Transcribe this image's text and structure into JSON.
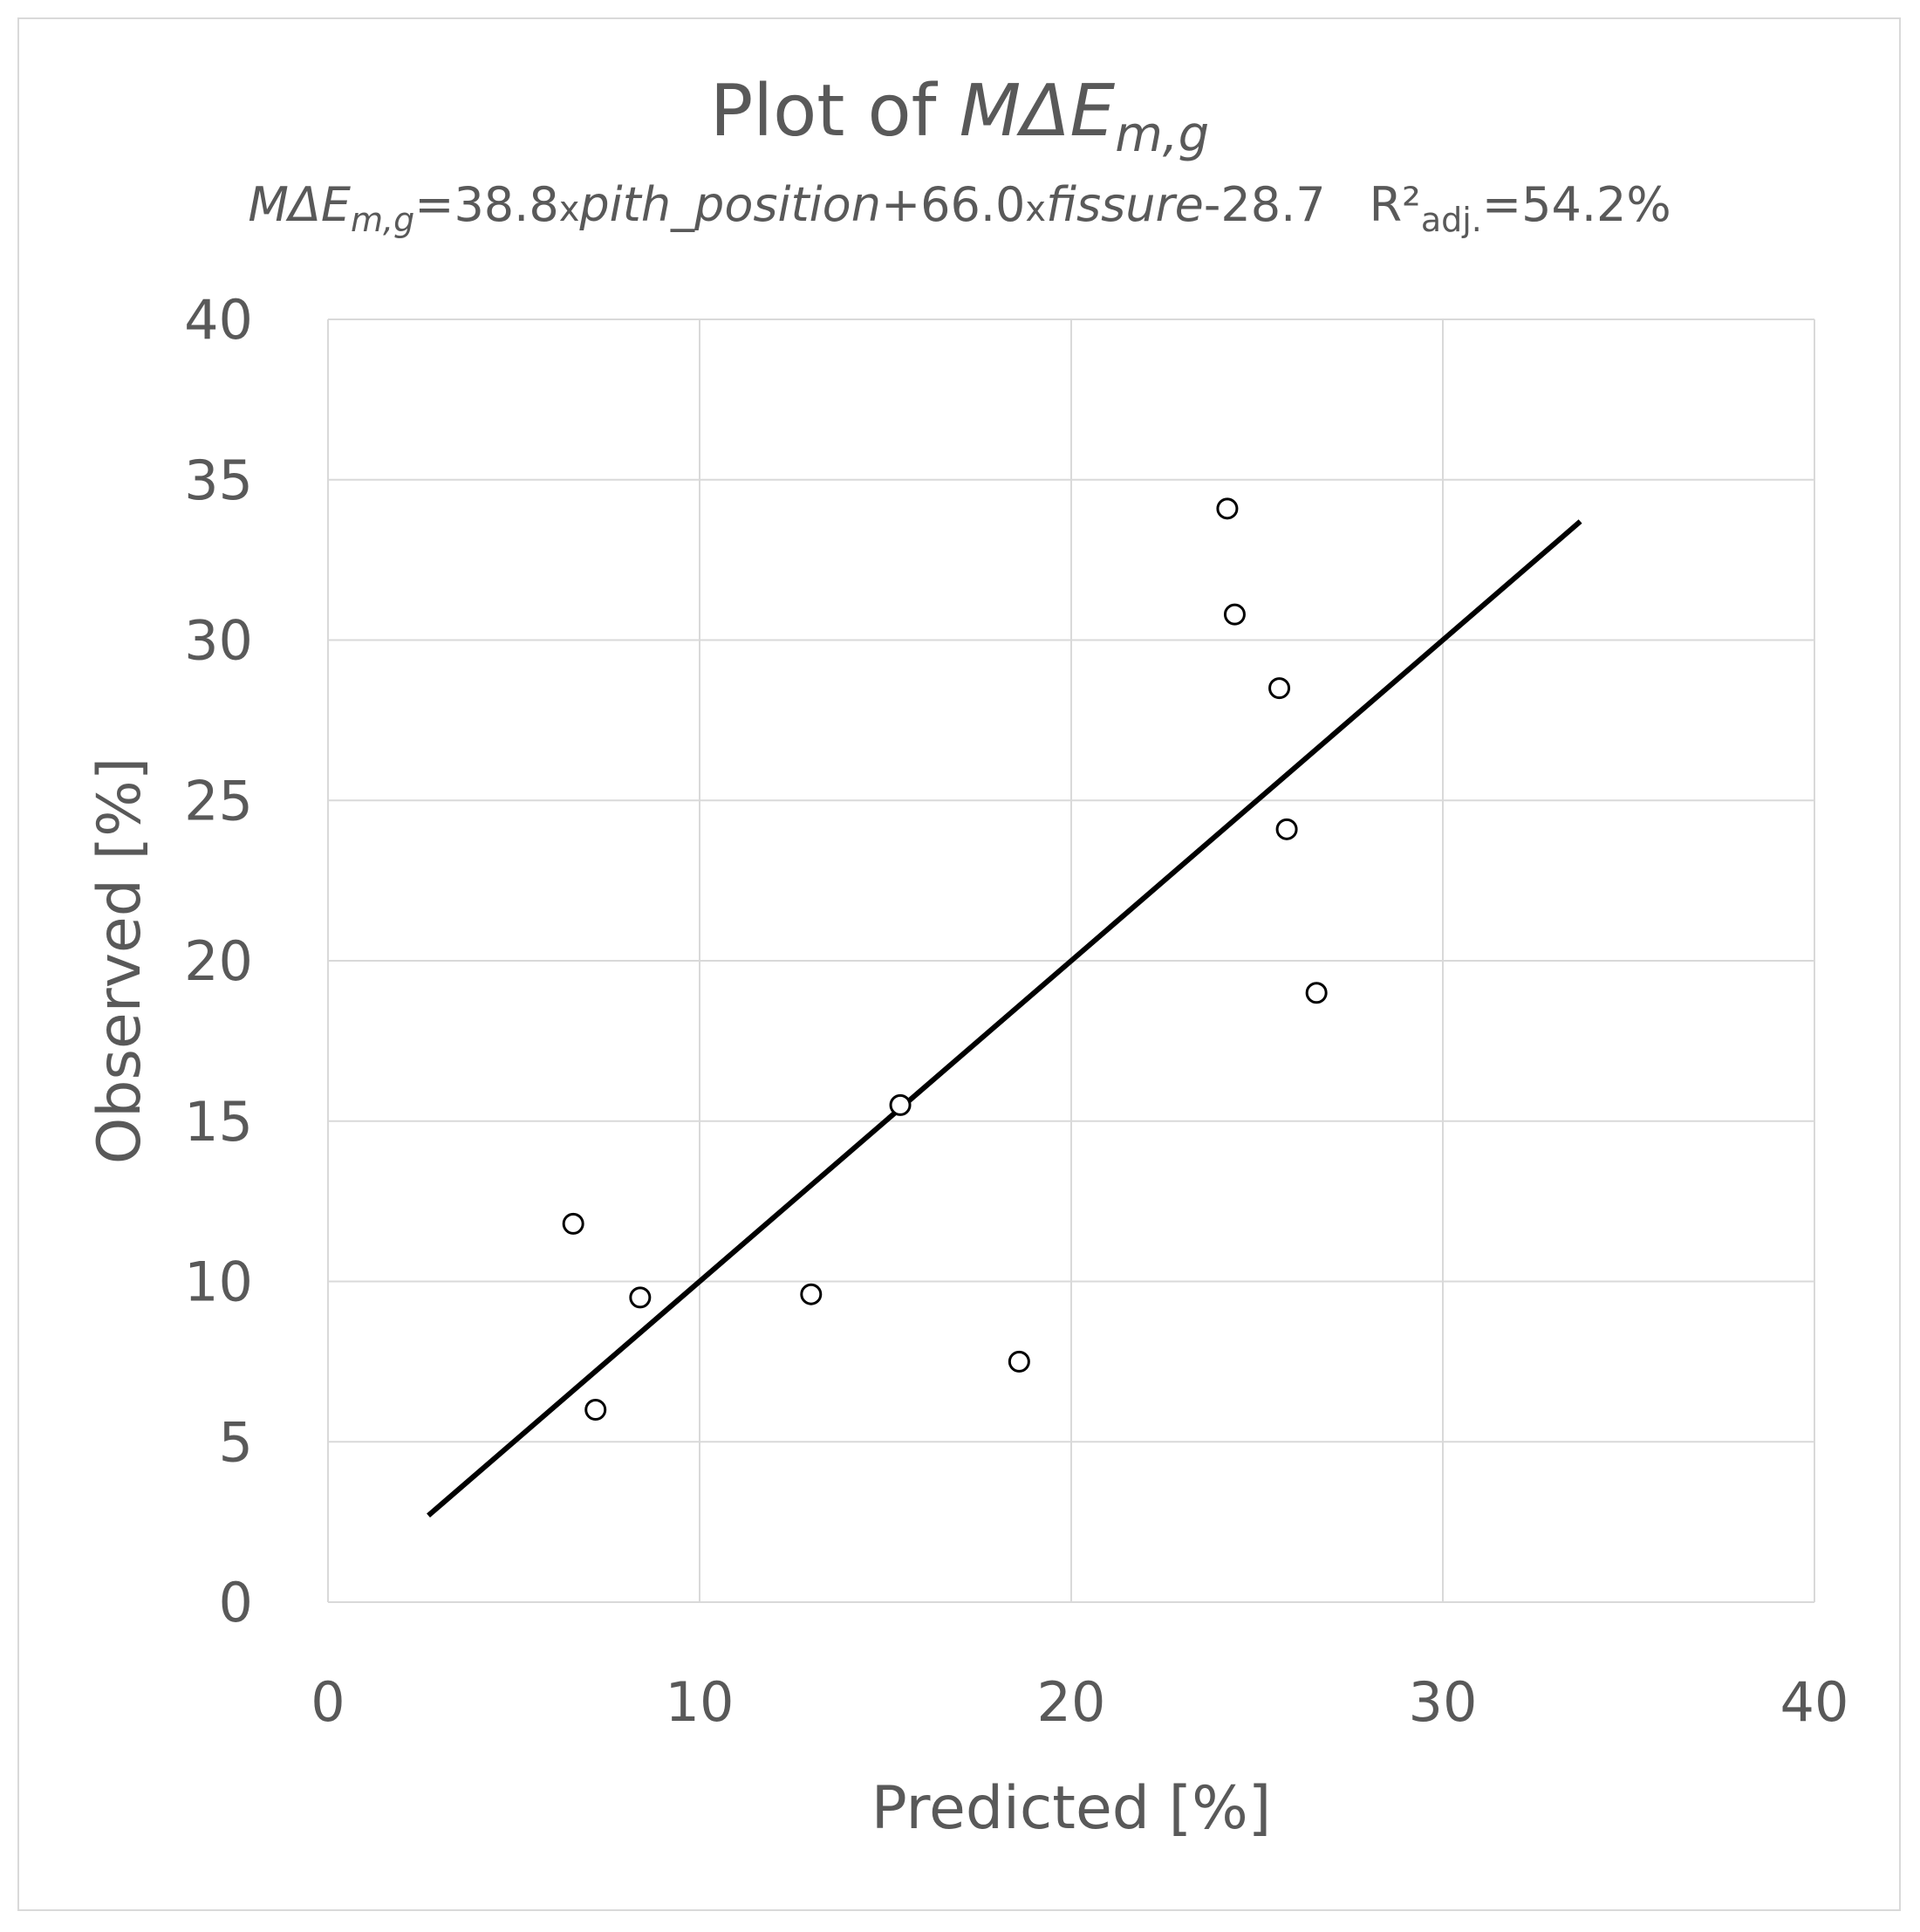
{
  "chart_data": {
    "type": "scatter",
    "title": "Plot of MΔEm,g",
    "title_parts": {
      "prefix": "Plot of ",
      "var": "MΔE",
      "sub": "m,g"
    },
    "subtitle": "MΔEm,g=38.8xpith_position+66.0xfissure-28.7   R²adj.=54.2%",
    "subtitle_parts": {
      "var": "MΔE",
      "var_sub": "m,g",
      "eq1": "=38.8",
      "x1": "x",
      "term1": "pith_position",
      "plus": "+66.0",
      "x2": "x",
      "term2": "fissure",
      "const": "-28.7",
      "r2": "R²",
      "r2_sub": "adj.",
      "r2_val": "=54.2%"
    },
    "xlabel": "Predicted [%]",
    "ylabel": "Observed [%]",
    "xlim": [
      0,
      40
    ],
    "ylim": [
      0,
      40
    ],
    "xticks": [
      0,
      10,
      20,
      30,
      40
    ],
    "yticks": [
      0,
      5,
      10,
      15,
      20,
      25,
      30,
      35,
      40
    ],
    "grid": true,
    "series": [
      {
        "points": [
          {
            "x": 6.6,
            "y": 11.8
          },
          {
            "x": 7.2,
            "y": 6.0
          },
          {
            "x": 8.4,
            "y": 9.5
          },
          {
            "x": 13.0,
            "y": 9.6
          },
          {
            "x": 15.4,
            "y": 15.5
          },
          {
            "x": 18.6,
            "y": 7.5
          },
          {
            "x": 24.2,
            "y": 34.1
          },
          {
            "x": 24.4,
            "y": 30.8
          },
          {
            "x": 25.6,
            "y": 28.5
          },
          {
            "x": 25.8,
            "y": 24.1
          },
          {
            "x": 26.6,
            "y": 19.0
          }
        ]
      }
    ],
    "fit_line": {
      "x": [
        2.7,
        33.7
      ],
      "y": [
        2.7,
        33.7
      ]
    }
  }
}
